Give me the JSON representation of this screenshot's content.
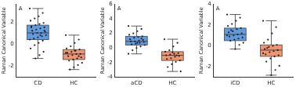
{
  "chart_data": [
    {
      "type": "box",
      "annotation": "A",
      "y_label": "Raman Canonical Variable",
      "categories": [
        "CD",
        "HC"
      ],
      "colors": [
        "#4f8fdc",
        "#ef8a62"
      ],
      "boxes": [
        {
          "low": -1.3,
          "q1": 0.4,
          "median": 1.0,
          "q3": 1.7,
          "high": 3.2
        },
        {
          "low": -2.3,
          "q1": -1.4,
          "median": -0.9,
          "q3": -0.5,
          "high": 0.8
        }
      ],
      "points": [
        [
          3.2,
          2.8,
          2.5,
          2.3,
          2.1,
          1.9,
          1.8,
          1.7,
          1.6,
          1.5,
          1.4,
          1.3,
          1.2,
          1.1,
          1.0,
          1.0,
          0.9,
          0.8,
          0.7,
          0.6,
          0.5,
          0.4,
          0.3,
          0.1,
          -0.1,
          -0.4,
          -0.7,
          -1.0,
          -1.3,
          1.5,
          1.2,
          0.8
        ],
        [
          0.8,
          0.4,
          0.1,
          -0.2,
          -0.4,
          -0.5,
          -0.6,
          -0.7,
          -0.8,
          -0.9,
          -0.9,
          -1.0,
          -1.1,
          -1.2,
          -1.3,
          -1.4,
          -1.5,
          -1.7,
          -1.9,
          -2.1,
          -2.3,
          -0.8,
          -1.1,
          -0.6
        ]
      ],
      "ylim": [
        -3,
        3.6
      ],
      "yticks": [
        -2,
        0,
        2
      ],
      "grid": false
    },
    {
      "type": "box",
      "annotation": "A",
      "y_label": "Raman Canonical Variable",
      "categories": [
        "aCD",
        "HC"
      ],
      "colors": [
        "#4f8fdc",
        "#ef8a62"
      ],
      "boxes": [
        {
          "low": -0.8,
          "q1": 0.4,
          "median": 0.9,
          "q3": 1.6,
          "high": 3.0
        },
        {
          "low": -3.2,
          "q1": -1.7,
          "median": -1.0,
          "q3": -0.5,
          "high": 1.2
        }
      ],
      "points": [
        [
          3.0,
          2.6,
          2.3,
          2.0,
          1.8,
          1.6,
          1.5,
          1.4,
          1.2,
          1.1,
          1.0,
          0.9,
          0.9,
          0.8,
          0.7,
          0.6,
          0.5,
          0.4,
          0.2,
          0.0,
          -0.3,
          -0.8,
          1.3,
          0.7
        ],
        [
          1.2,
          0.7,
          0.2,
          -0.3,
          -0.5,
          -0.7,
          -0.8,
          -0.9,
          -1.0,
          -1.1,
          -1.2,
          -1.4,
          -1.5,
          -1.7,
          -1.9,
          -2.2,
          -2.6,
          -3.2,
          -1.0,
          -0.6
        ]
      ],
      "ylim": [
        -4,
        6
      ],
      "yticks": [
        -4,
        -2,
        0,
        2,
        4,
        6
      ],
      "grid": false
    },
    {
      "type": "box",
      "annotation": "A",
      "y_label": "Raman Canonical Variable",
      "categories": [
        "iCD",
        "HC"
      ],
      "colors": [
        "#4f8fdc",
        "#ef8a62"
      ],
      "boxes": [
        {
          "low": -0.3,
          "q1": 0.5,
          "median": 1.1,
          "q3": 1.7,
          "high": 3.0
        },
        {
          "low": -2.8,
          "q1": -1.0,
          "median": -0.4,
          "q3": 0.1,
          "high": 2.4
        }
      ],
      "points": [
        [
          3.0,
          2.7,
          2.4,
          2.1,
          1.9,
          1.7,
          1.6,
          1.4,
          1.3,
          1.2,
          1.1,
          1.0,
          0.9,
          0.8,
          0.7,
          0.6,
          0.5,
          0.3,
          0.1,
          -0.3,
          1.5,
          1.0
        ],
        [
          2.4,
          1.8,
          1.2,
          0.6,
          0.3,
          0.1,
          0.0,
          -0.1,
          -0.3,
          -0.4,
          -0.5,
          -0.6,
          -0.8,
          -0.9,
          -1.0,
          -1.2,
          -1.5,
          -1.9,
          -2.3,
          -2.8,
          -0.2,
          -0.7
        ]
      ],
      "ylim": [
        -3,
        4
      ],
      "yticks": [
        -2,
        0,
        2,
        4
      ],
      "grid": false
    }
  ]
}
